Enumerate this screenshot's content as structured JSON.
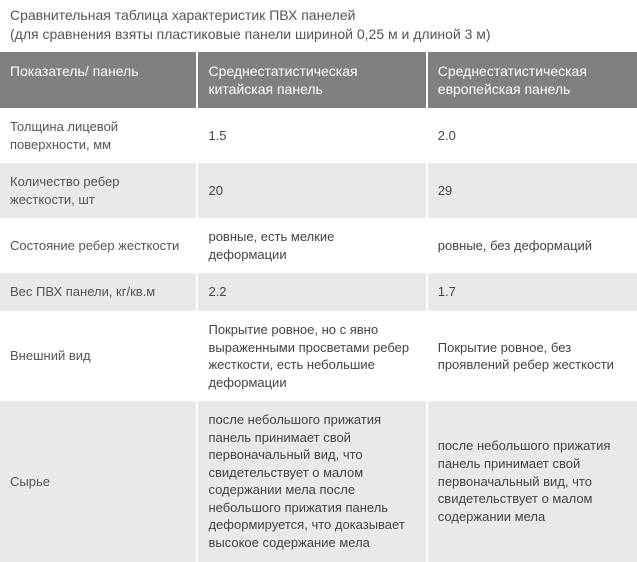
{
  "title_line1": "Сравнительная таблица характеристик ПВХ панелей",
  "title_line2": "(для сравнения взяты пластиковые панели шириной 0,25 м и длиной 3 м)",
  "colors": {
    "header_bg": "#808080",
    "header_text": "#ffffff",
    "row_odd_bg": "#ffffff",
    "row_even_bg": "#e9e9e9",
    "body_text": "#444444",
    "title_text": "#555555",
    "border": "#ffffff"
  },
  "typography": {
    "font_family": "Arial",
    "title_fontsize": 14,
    "header_fontsize": 14,
    "cell_fontsize": 13
  },
  "columns": [
    {
      "label": "Показатель/ панель",
      "width_pct": 31
    },
    {
      "label": "Среднестатистическая китайская панель",
      "width_pct": 36
    },
    {
      "label": "Среднестатистическая европейская панель",
      "width_pct": 33
    }
  ],
  "rows": [
    {
      "label": "Толщина лицевой поверхности, мм",
      "chinese": "1.5",
      "european": "2.0"
    },
    {
      "label": "Количество ребер жесткости, шт",
      "chinese": "20",
      "european": "29"
    },
    {
      "label": "Состояние ребер жесткости",
      "chinese": "ровные, есть мелкие деформации",
      "european": "ровные, без деформаций"
    },
    {
      "label": "Вес ПВХ панели, кг/кв.м",
      "chinese": "2.2",
      "european": "1.7"
    },
    {
      "label": "Внешний вид",
      "chinese": "Покрытие ровное, но с явно выраженными просветами ребер жесткости, есть небольшие деформации",
      "european": "Покрытие ровное, без проявлений ребер жесткости"
    },
    {
      "label": "Сырье",
      "chinese": "после небольшого прижатия панель принимает свой первоначальный вид, что свидетельствует о малом содержании мела    после небольшого прижатия панель деформируется, что доказывает высокое содержание мела",
      "european": "после небольшого прижатия панель принимает свой первоначальный вид, что свидетельствует о малом содержании мела"
    }
  ]
}
